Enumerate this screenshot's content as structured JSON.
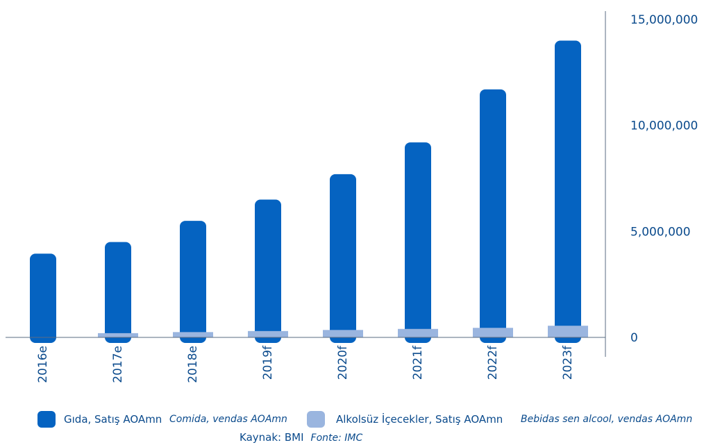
{
  "chart_data": {
    "type": "bar",
    "categories": [
      "2016e",
      "2017e",
      "2018e",
      "2019f",
      "2020f",
      "2021f",
      "2022f",
      "2023f"
    ],
    "series": [
      {
        "name": "Gıda, Satış AOAmn",
        "alt_name": "Comida, vendas AOAmn",
        "color": "#0563c1",
        "values": [
          3950000,
          4500000,
          5500000,
          6500000,
          7700000,
          9200000,
          11700000,
          14000000
        ]
      },
      {
        "name": "Alkolsüz İçecekler, Satış AOAmn",
        "alt_name": "Bebidas sen alcool, vendas AOAmn",
        "color": "#9ab5df",
        "values": [
          0,
          200000,
          250000,
          300000,
          350000,
          400000,
          450000,
          550000
        ]
      }
    ],
    "ylim": [
      0,
      15000000
    ],
    "yticks": [
      "0",
      "5,000,000",
      "10,000,000",
      "15,000,000"
    ],
    "axis_position": "right",
    "legend_position": "bottom"
  },
  "source": {
    "label": "Kaynak: BMI",
    "alt_label": "Fonte: IMC"
  }
}
